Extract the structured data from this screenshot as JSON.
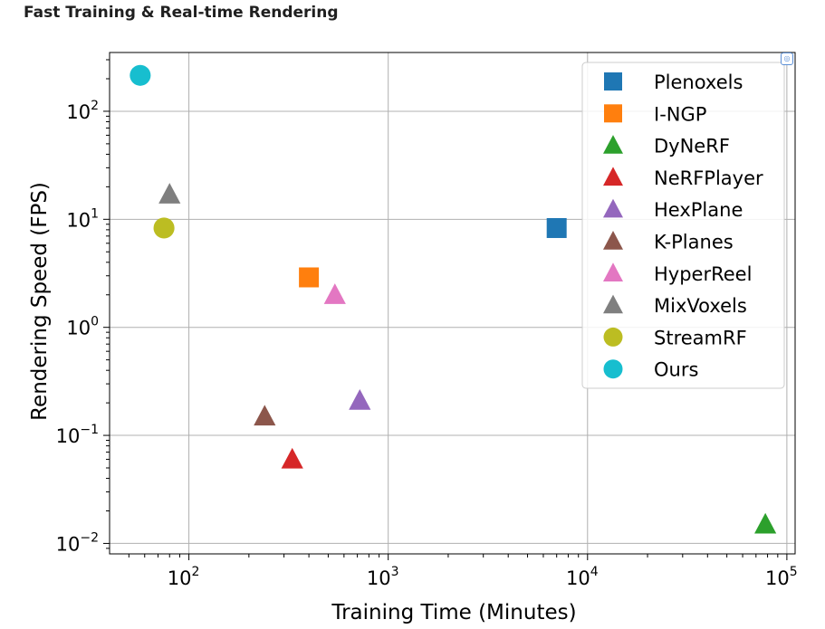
{
  "page": {
    "heading": "Fast Training & Real-time Rendering",
    "corner_icon": "focus-icon"
  },
  "chart_data": {
    "type": "scatter",
    "title": "",
    "xlabel": "Training Time (Minutes)",
    "ylabel": "Rendering Speed (FPS)",
    "xscale": "log",
    "yscale": "log",
    "xlim": [
      40,
      110000
    ],
    "ylim": [
      0.008,
      350
    ],
    "xticks": [
      {
        "value": 100,
        "base": "10",
        "exp": "2"
      },
      {
        "value": 1000,
        "base": "10",
        "exp": "3"
      },
      {
        "value": 10000,
        "base": "10",
        "exp": "4"
      },
      {
        "value": 100000,
        "base": "10",
        "exp": "5"
      }
    ],
    "yticks": [
      {
        "value": 0.01,
        "base": "10",
        "exp": "−2"
      },
      {
        "value": 0.1,
        "base": "10",
        "exp": "−1"
      },
      {
        "value": 1,
        "base": "10",
        "exp": "0"
      },
      {
        "value": 10,
        "base": "10",
        "exp": "1"
      },
      {
        "value": 100,
        "base": "10",
        "exp": "2"
      }
    ],
    "grid": true,
    "legend_position": "top-right",
    "series": [
      {
        "name": "Plenoxels",
        "marker": "square",
        "color": "#1f77b4",
        "x": 7000,
        "y": 8.3
      },
      {
        "name": "I-NGP",
        "marker": "square",
        "color": "#ff7f0e",
        "x": 400,
        "y": 2.9
      },
      {
        "name": "DyNeRF",
        "marker": "triangle",
        "color": "#2ca02c",
        "x": 78000,
        "y": 0.015
      },
      {
        "name": "NeRFPlayer",
        "marker": "triangle",
        "color": "#d62728",
        "x": 330,
        "y": 0.06
      },
      {
        "name": "HexPlane",
        "marker": "triangle",
        "color": "#9467bd",
        "x": 720,
        "y": 0.21
      },
      {
        "name": "K-Planes",
        "marker": "triangle",
        "color": "#8c564b",
        "x": 240,
        "y": 0.15
      },
      {
        "name": "HyperReel",
        "marker": "triangle",
        "color": "#e377c2",
        "x": 540,
        "y": 2.0
      },
      {
        "name": "MixVoxels",
        "marker": "triangle",
        "color": "#7f7f7f",
        "x": 80,
        "y": 17
      },
      {
        "name": "StreamRF",
        "marker": "circle",
        "color": "#bcbd22",
        "x": 75,
        "y": 8.3
      },
      {
        "name": "Ours",
        "marker": "circle",
        "color": "#17becf",
        "x": 57,
        "y": 215
      }
    ]
  }
}
